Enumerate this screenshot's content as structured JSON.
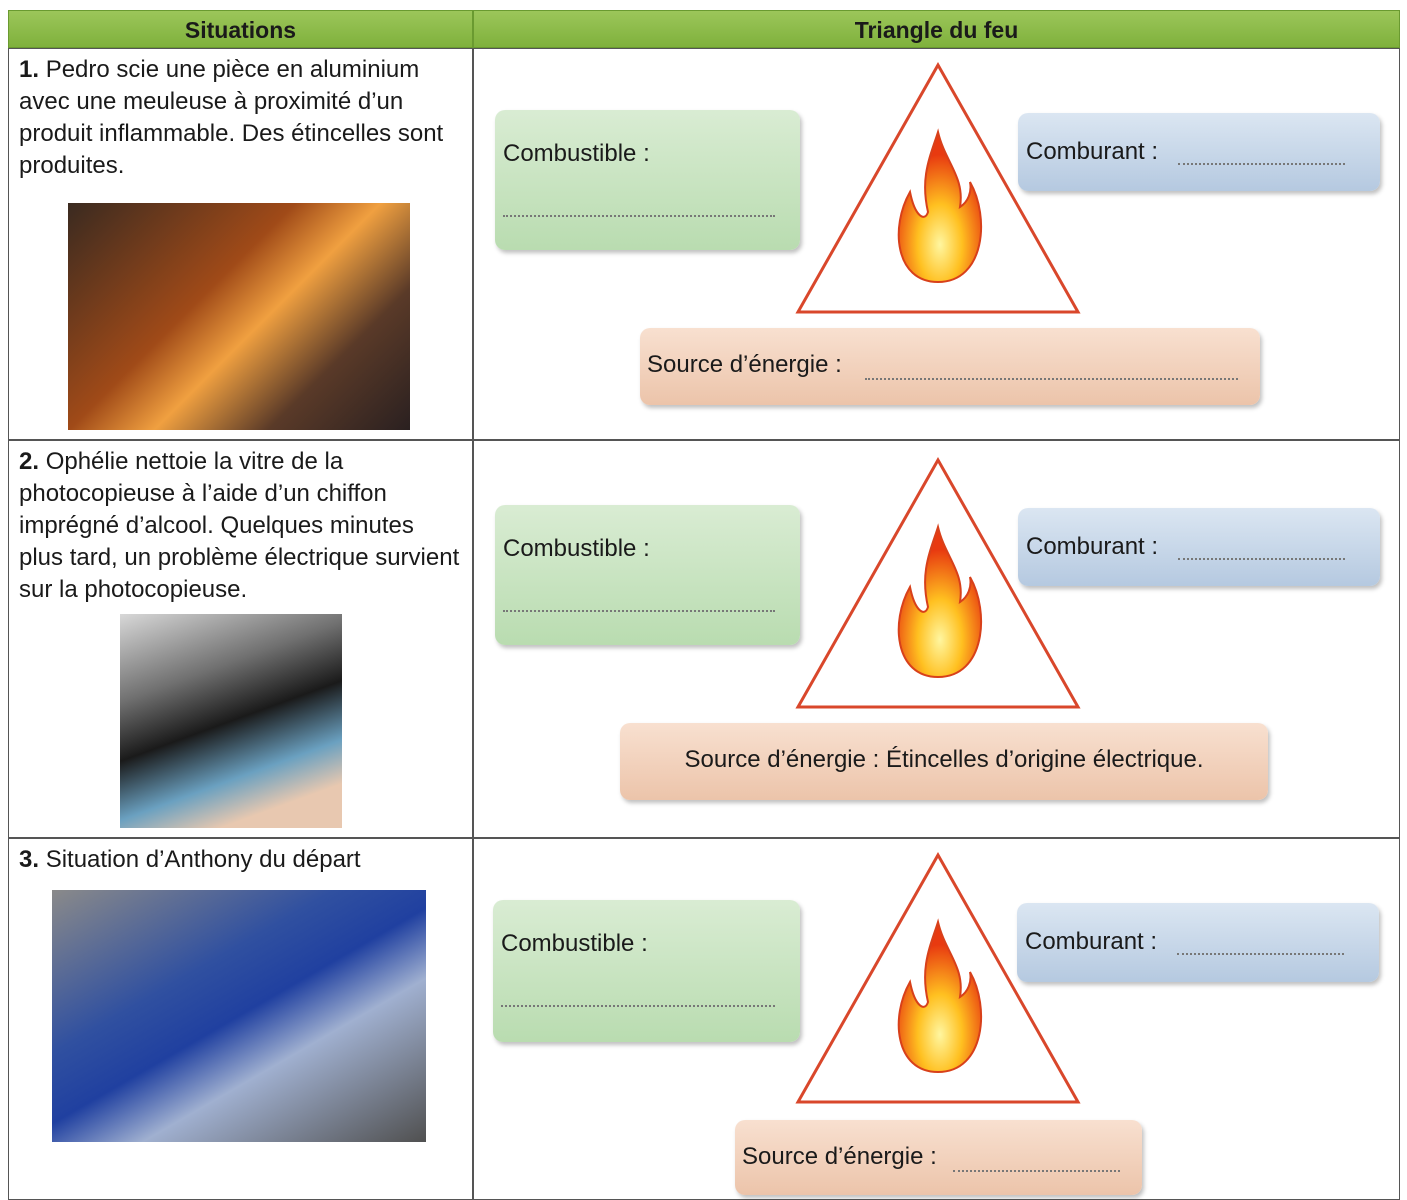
{
  "table": {
    "headers": [
      "Situations",
      "Triangle du feu"
    ],
    "rows": [
      {
        "number": "1.",
        "text": "Pedro scie une pièce en aluminium avec une meuleuse à proximité d’un produit inflammable. Des étincelles sont produites.",
        "combustible": "Combustible :",
        "comburant": "Comburant :",
        "source": "Source d’énergie :"
      },
      {
        "number": "2.",
        "text": "Ophélie nettoie la vitre de la photocopieuse à l’aide d’un chiffon imprégné d’alcool. Quelques minutes plus tard, un problème électrique survient sur la photocopieuse.",
        "combustible": "Combustible :",
        "comburant": "Comburant :",
        "source": "Source d’énergie : Étincelles d’origine électrique."
      },
      {
        "number": "3.",
        "text": "Situation d’Anthony du départ",
        "combustible": "Combustible :",
        "comburant": "Comburant :",
        "source": "Source d’énergie :"
      }
    ]
  }
}
